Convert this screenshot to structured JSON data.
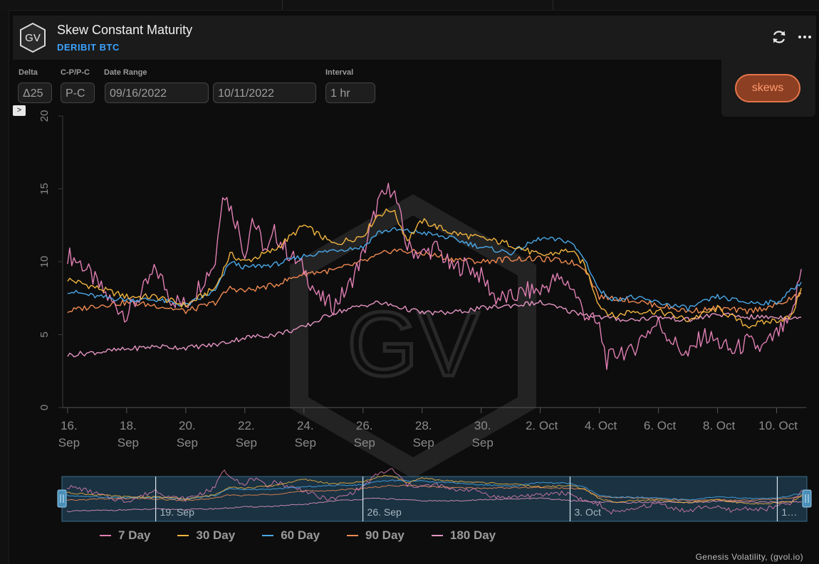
{
  "header": {
    "title": "Skew Constant Maturity",
    "subtitle": "DERIBIT BTC",
    "logo_text": "GV",
    "refresh_icon": "refresh-icon",
    "menu_icon": "more-horizontal-icon"
  },
  "controls": {
    "delta_label": "Delta",
    "delta_value": "Δ25",
    "cp_label": "C-P/P-C",
    "cp_value": "P-C",
    "range_label": "Date Range",
    "start_date": "09/16/2022",
    "end_date": "10/11/2022",
    "interval_label": "Interval",
    "interval_value": "1 hr",
    "skews_button": "skews",
    "expand_icon": "chevron-right-icon"
  },
  "watermark": "GV",
  "navigator": {
    "labels": [
      "19. Sep",
      "26. Sep",
      "3. Oct",
      "1…"
    ]
  },
  "footer": {
    "credit": "Genesis Volatility, (gvol.io)"
  },
  "colors": {
    "7 Day": "#e07fb3",
    "30 Day": "#f2b43e",
    "60 Day": "#4aa8e8",
    "90 Day": "#f08a52",
    "180 Day": "#e495c2"
  },
  "chart_data": {
    "type": "line",
    "title": "Skew Constant Maturity",
    "subtitle": "DERIBIT BTC",
    "xlabel": "",
    "ylabel": "",
    "ylim": [
      0,
      20
    ],
    "yticks": [
      0,
      5,
      10,
      15,
      20
    ],
    "xlim": [
      "2022-09-15T20:00",
      "2022-10-11T00:00"
    ],
    "xticks": [
      {
        "date": "2022-09-16",
        "label": [
          "16.",
          "Sep"
        ]
      },
      {
        "date": "2022-09-18",
        "label": [
          "18.",
          "Sep"
        ]
      },
      {
        "date": "2022-09-20",
        "label": [
          "20.",
          "Sep"
        ]
      },
      {
        "date": "2022-09-22",
        "label": [
          "22.",
          "Sep"
        ]
      },
      {
        "date": "2022-09-24",
        "label": [
          "24.",
          "Sep"
        ]
      },
      {
        "date": "2022-09-26",
        "label": [
          "26.",
          "Sep"
        ]
      },
      {
        "date": "2022-09-28",
        "label": [
          "28.",
          "Sep"
        ]
      },
      {
        "date": "2022-09-30",
        "label": [
          "30.",
          "Sep"
        ]
      },
      {
        "date": "2022-10-02",
        "label": [
          "2. Oct"
        ]
      },
      {
        "date": "2022-10-04",
        "label": [
          "4. Oct"
        ]
      },
      {
        "date": "2022-10-06",
        "label": [
          "6. Oct"
        ]
      },
      {
        "date": "2022-10-08",
        "label": [
          "8. Oct"
        ]
      },
      {
        "date": "2022-10-10",
        "label": [
          "10. Oct"
        ]
      }
    ],
    "grid": false,
    "legend": "bottom",
    "series": [
      {
        "name": "7 Day",
        "color": "#e07fb3",
        "points": [
          [
            "2022-09-16",
            10.5
          ],
          [
            "2022-09-16T12:00",
            9.8
          ],
          [
            "2022-09-17",
            8.5
          ],
          [
            "2022-09-17T12:00",
            7.2
          ],
          [
            "2022-09-18",
            6.4
          ],
          [
            "2022-09-18T12:00",
            7.8
          ],
          [
            "2022-09-19",
            9.5
          ],
          [
            "2022-09-19T12:00",
            7.5
          ],
          [
            "2022-09-20",
            7.0
          ],
          [
            "2022-09-20T12:00",
            8.5
          ],
          [
            "2022-09-21",
            10.0
          ],
          [
            "2022-09-21T06:00",
            15.0
          ],
          [
            "2022-09-21T18:00",
            12.5
          ],
          [
            "2022-09-22",
            10.5
          ],
          [
            "2022-09-22T06:00",
            13.0
          ],
          [
            "2022-09-22T18:00",
            10.5
          ],
          [
            "2022-09-23",
            12.0
          ],
          [
            "2022-09-23T12:00",
            10.5
          ],
          [
            "2022-09-24",
            9.5
          ],
          [
            "2022-09-24T12:00",
            7.5
          ],
          [
            "2022-09-25",
            7.0
          ],
          [
            "2022-09-25T12:00",
            8.2
          ],
          [
            "2022-09-26",
            10.5
          ],
          [
            "2022-09-26T12:00",
            14.0
          ],
          [
            "2022-09-27",
            15.2
          ],
          [
            "2022-09-27T12:00",
            11.0
          ],
          [
            "2022-09-28",
            10.5
          ],
          [
            "2022-09-28T12:00",
            11.0
          ],
          [
            "2022-09-29",
            9.5
          ],
          [
            "2022-09-29T12:00",
            9.8
          ],
          [
            "2022-09-30",
            9.0
          ],
          [
            "2022-09-30T12:00",
            7.5
          ],
          [
            "2022-10-01",
            7.5
          ],
          [
            "2022-10-01T12:00",
            8.0
          ],
          [
            "2022-10-02",
            8.0
          ],
          [
            "2022-10-02T12:00",
            8.8
          ],
          [
            "2022-10-03",
            8.5
          ],
          [
            "2022-10-03T12:00",
            6.5
          ],
          [
            "2022-10-04",
            5.5
          ],
          [
            "2022-10-04T06:00",
            3.2
          ],
          [
            "2022-10-04T18:00",
            4.0
          ],
          [
            "2022-10-05",
            3.6
          ],
          [
            "2022-10-05T12:00",
            5.0
          ],
          [
            "2022-10-06",
            5.8
          ],
          [
            "2022-10-06T12:00",
            4.5
          ],
          [
            "2022-10-07",
            3.5
          ],
          [
            "2022-10-07T12:00",
            5.0
          ],
          [
            "2022-10-08",
            4.5
          ],
          [
            "2022-10-08T12:00",
            3.8
          ],
          [
            "2022-10-09",
            4.5
          ],
          [
            "2022-10-09T12:00",
            4.0
          ],
          [
            "2022-10-10",
            5.0
          ],
          [
            "2022-10-10T12:00",
            6.0
          ],
          [
            "2022-10-10T20:00",
            9.5
          ]
        ]
      },
      {
        "name": "30 Day",
        "color": "#f2b43e",
        "points": [
          [
            "2022-09-16",
            8.8
          ],
          [
            "2022-09-17",
            8.2
          ],
          [
            "2022-09-18",
            7.6
          ],
          [
            "2022-09-19",
            7.6
          ],
          [
            "2022-09-20",
            7.0
          ],
          [
            "2022-09-21",
            8.2
          ],
          [
            "2022-09-21T12:00",
            10.5
          ],
          [
            "2022-09-22",
            10.0
          ],
          [
            "2022-09-23",
            10.8
          ],
          [
            "2022-09-24",
            12.5
          ],
          [
            "2022-09-25",
            11.2
          ],
          [
            "2022-09-26",
            11.8
          ],
          [
            "2022-09-26T12:00",
            13.2
          ],
          [
            "2022-09-27",
            13.6
          ],
          [
            "2022-09-27T12:00",
            11.5
          ],
          [
            "2022-09-28",
            12.8
          ],
          [
            "2022-09-29",
            12.0
          ],
          [
            "2022-09-30",
            11.6
          ],
          [
            "2022-10-01",
            11.2
          ],
          [
            "2022-10-02",
            10.4
          ],
          [
            "2022-10-03",
            10.8
          ],
          [
            "2022-10-03T12:00",
            9.8
          ],
          [
            "2022-10-04",
            7.0
          ],
          [
            "2022-10-04T12:00",
            6.2
          ],
          [
            "2022-10-05",
            6.6
          ],
          [
            "2022-10-06",
            6.6
          ],
          [
            "2022-10-07",
            6.0
          ],
          [
            "2022-10-08",
            6.8
          ],
          [
            "2022-10-09",
            5.6
          ],
          [
            "2022-10-10",
            6.0
          ],
          [
            "2022-10-10T12:00",
            6.2
          ],
          [
            "2022-10-10T20:00",
            8.2
          ]
        ]
      },
      {
        "name": "60 Day",
        "color": "#4aa8e8",
        "points": [
          [
            "2022-09-16",
            8.0
          ],
          [
            "2022-09-17",
            7.6
          ],
          [
            "2022-09-18",
            7.4
          ],
          [
            "2022-09-19",
            7.4
          ],
          [
            "2022-09-20",
            7.0
          ],
          [
            "2022-09-21",
            8.0
          ],
          [
            "2022-09-21T12:00",
            10.0
          ],
          [
            "2022-09-22",
            9.6
          ],
          [
            "2022-09-23",
            9.8
          ],
          [
            "2022-09-24",
            10.4
          ],
          [
            "2022-09-25",
            10.8
          ],
          [
            "2022-09-26",
            11.0
          ],
          [
            "2022-09-26T12:00",
            12.0
          ],
          [
            "2022-09-27",
            12.2
          ],
          [
            "2022-09-28",
            12.0
          ],
          [
            "2022-09-29",
            11.6
          ],
          [
            "2022-09-30",
            11.0
          ],
          [
            "2022-10-01",
            10.6
          ],
          [
            "2022-10-02",
            11.6
          ],
          [
            "2022-10-03",
            11.4
          ],
          [
            "2022-10-03T12:00",
            10.2
          ],
          [
            "2022-10-04",
            8.0
          ],
          [
            "2022-10-04T12:00",
            7.4
          ],
          [
            "2022-10-05",
            7.6
          ],
          [
            "2022-10-06",
            7.2
          ],
          [
            "2022-10-07",
            6.8
          ],
          [
            "2022-10-08",
            7.6
          ],
          [
            "2022-10-09",
            7.2
          ],
          [
            "2022-10-10",
            7.2
          ],
          [
            "2022-10-10T20:00",
            8.6
          ]
        ]
      },
      {
        "name": "90 Day",
        "color": "#f08a52",
        "points": [
          [
            "2022-09-16",
            6.6
          ],
          [
            "2022-09-17",
            7.0
          ],
          [
            "2022-09-18",
            7.2
          ],
          [
            "2022-09-19",
            7.0
          ],
          [
            "2022-09-20",
            6.6
          ],
          [
            "2022-09-21",
            7.2
          ],
          [
            "2022-09-21T12:00",
            8.2
          ],
          [
            "2022-09-22",
            8.0
          ],
          [
            "2022-09-23",
            8.4
          ],
          [
            "2022-09-24",
            9.2
          ],
          [
            "2022-09-25",
            9.4
          ],
          [
            "2022-09-26",
            10.0
          ],
          [
            "2022-09-27",
            10.8
          ],
          [
            "2022-09-28",
            10.6
          ],
          [
            "2022-09-29",
            10.2
          ],
          [
            "2022-09-30",
            10.0
          ],
          [
            "2022-10-01",
            10.2
          ],
          [
            "2022-10-02",
            10.2
          ],
          [
            "2022-10-03",
            10.0
          ],
          [
            "2022-10-03T12:00",
            9.6
          ],
          [
            "2022-10-04",
            7.6
          ],
          [
            "2022-10-05",
            7.4
          ],
          [
            "2022-10-06",
            7.0
          ],
          [
            "2022-10-07",
            6.6
          ],
          [
            "2022-10-08",
            6.8
          ],
          [
            "2022-10-09",
            6.6
          ],
          [
            "2022-10-10",
            7.0
          ],
          [
            "2022-10-10T20:00",
            7.8
          ]
        ]
      },
      {
        "name": "180 Day",
        "color": "#e495c2",
        "points": [
          [
            "2022-09-16",
            3.6
          ],
          [
            "2022-09-17",
            3.8
          ],
          [
            "2022-09-18",
            4.0
          ],
          [
            "2022-09-19",
            4.2
          ],
          [
            "2022-09-20",
            4.1
          ],
          [
            "2022-09-21",
            4.3
          ],
          [
            "2022-09-22",
            4.8
          ],
          [
            "2022-09-23",
            5.0
          ],
          [
            "2022-09-24",
            5.5
          ],
          [
            "2022-09-25",
            6.5
          ],
          [
            "2022-09-26",
            7.0
          ],
          [
            "2022-09-26T12:00",
            7.2
          ],
          [
            "2022-09-27",
            7.0
          ],
          [
            "2022-09-28",
            6.5
          ],
          [
            "2022-09-29",
            6.5
          ],
          [
            "2022-09-30",
            6.8
          ],
          [
            "2022-10-01",
            7.0
          ],
          [
            "2022-10-02",
            7.2
          ],
          [
            "2022-10-03",
            6.6
          ],
          [
            "2022-10-04",
            6.2
          ],
          [
            "2022-10-05",
            6.0
          ],
          [
            "2022-10-06",
            6.2
          ],
          [
            "2022-10-07",
            6.0
          ],
          [
            "2022-10-08",
            6.4
          ],
          [
            "2022-10-09",
            6.2
          ],
          [
            "2022-10-10",
            6.2
          ],
          [
            "2022-10-10T20:00",
            6.2
          ]
        ]
      }
    ]
  }
}
